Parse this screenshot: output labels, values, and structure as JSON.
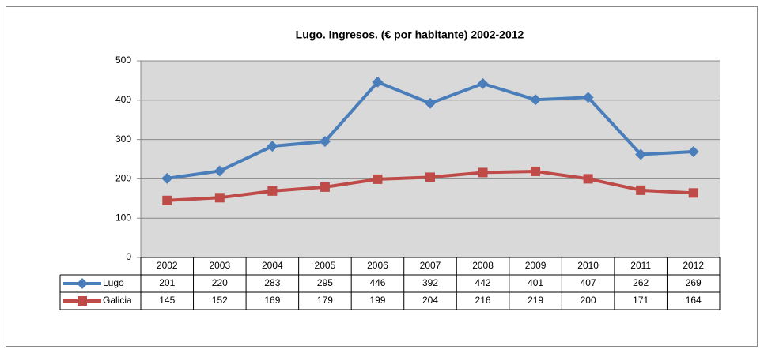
{
  "chart_data": {
    "type": "line",
    "title": "Lugo. Ingresos. (€ por habitante) 2002-2012",
    "categories": [
      "2002",
      "2003",
      "2004",
      "2005",
      "2006",
      "2007",
      "2008",
      "2009",
      "2010",
      "2011",
      "2012"
    ],
    "series": [
      {
        "name": "Lugo",
        "color": "#4a7ebb",
        "marker": "diamond",
        "values": [
          201,
          220,
          283,
          295,
          446,
          392,
          442,
          401,
          407,
          262,
          269
        ]
      },
      {
        "name": "Galicia",
        "color": "#be4b48",
        "marker": "square",
        "values": [
          145,
          152,
          169,
          179,
          199,
          204,
          216,
          219,
          200,
          171,
          164
        ]
      }
    ],
    "ylim": [
      0,
      500
    ],
    "yticks": [
      0,
      100,
      200,
      300,
      400,
      500
    ],
    "grid": true,
    "data_table": true
  }
}
